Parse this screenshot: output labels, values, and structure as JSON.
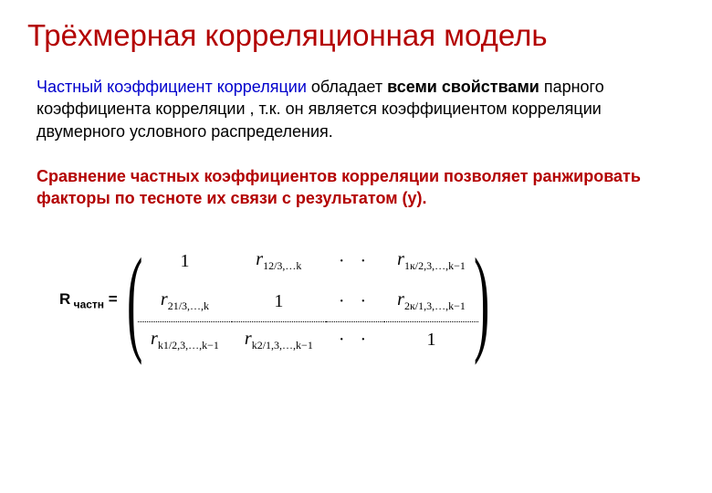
{
  "title": "Трёхмерная корреляционная модель",
  "para1": {
    "lead": "Частный коэффициент корреляции",
    "mid1": "  обладает ",
    "bold1": "всеми свойствами",
    "mid2": " парного коэффициента корреляции , т.к. он является коэффициентом корреляции двумерного условного распределения."
  },
  "para2": "Сравнение частных коэффициентов корреляции позволяет ранжировать факторы по тесноте их связи с результатом (y).",
  "matrix_label": "R",
  "matrix_label_sub": " частн",
  "matrix_label_eq": " =",
  "matrix": {
    "r11": "1",
    "r12_base": "r",
    "r12_sub": "12/3,…k",
    "r13": "· ·",
    "r14_base": "r",
    "r14_sub": "1к/2,3,…,k−1",
    "r21_base": "r",
    "r21_sub": "21/3,…,k",
    "r22": "1",
    "r23": "· ·",
    "r24_base": "r",
    "r24_sub": "2к/1,3,…,k−1",
    "r31_base": "r",
    "r31_sub": "k1/2,3,…,k−1",
    "r32_base": "r",
    "r32_sub": "k2/1,3,…,k−1",
    "r33": "· ·",
    "r34": "1"
  },
  "colors": {
    "title": "#b30000",
    "blue": "#0000cc",
    "text": "#000000",
    "bg": "#ffffff"
  },
  "fontsize": {
    "title": 33,
    "body": 18,
    "matrix": 20
  }
}
